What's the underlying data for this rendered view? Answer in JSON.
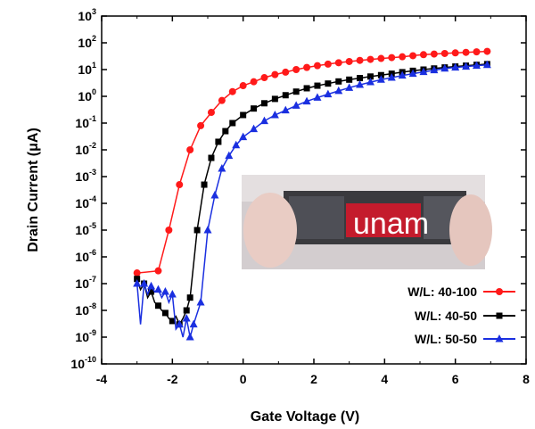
{
  "chart_data": {
    "type": "scatter",
    "title": "",
    "xlabel": "Gate Voltage (V)",
    "ylabel": "Drain Current (μA)",
    "xlim": [
      -4,
      8
    ],
    "ylim_log10": [
      -10,
      3
    ],
    "yscale": "log",
    "x_ticks": [
      "-4",
      "-2",
      "0",
      "2",
      "4",
      "6",
      "8"
    ],
    "y_tick_base": "10",
    "y_tick_exponents": [
      "-10",
      "-9",
      "-8",
      "-7",
      "-6",
      "-5",
      "-4",
      "-3",
      "-2",
      "-1",
      "0",
      "1",
      "2",
      "3"
    ],
    "legend_position": "bottom-right",
    "series": [
      {
        "name": "W/L: 40-100",
        "color": "#ff1a1a",
        "marker": "circle",
        "x": [
          -3.0,
          -2.4,
          -2.1,
          -1.8,
          -1.5,
          -1.2,
          -0.9,
          -0.6,
          -0.3,
          0.0,
          0.3,
          0.6,
          0.9,
          1.2,
          1.5,
          1.8,
          2.1,
          2.4,
          2.7,
          3.0,
          3.3,
          3.6,
          3.9,
          4.2,
          4.5,
          4.8,
          5.1,
          5.4,
          5.7,
          6.0,
          6.3,
          6.6,
          6.9
        ],
        "y": [
          2.5e-07,
          3e-07,
          1e-05,
          0.0005,
          0.01,
          0.08,
          0.25,
          0.7,
          1.5,
          2.5,
          3.5,
          5,
          6.5,
          8,
          10,
          12,
          14,
          16,
          18,
          20,
          22,
          24,
          26,
          28,
          30,
          33,
          36,
          38,
          40,
          42,
          44,
          46,
          48
        ]
      },
      {
        "name": "W/L: 40-50",
        "color": "#000000",
        "marker": "square",
        "x": [
          -3.0,
          -2.9,
          -2.8,
          -2.7,
          -2.6,
          -2.5,
          -2.4,
          -2.3,
          -2.2,
          -2.1,
          -2.0,
          -1.9,
          -1.8,
          -1.7,
          -1.6,
          -1.5,
          -1.3,
          -1.1,
          -0.9,
          -0.7,
          -0.5,
          -0.3,
          0.0,
          0.3,
          0.6,
          0.9,
          1.2,
          1.5,
          1.8,
          2.1,
          2.4,
          2.7,
          3.0,
          3.3,
          3.6,
          3.9,
          4.2,
          4.5,
          4.8,
          5.1,
          5.4,
          5.7,
          6.0,
          6.3,
          6.6,
          6.9
        ],
        "y": [
          1.5e-07,
          6e-08,
          1e-07,
          3e-08,
          5e-08,
          2e-08,
          1.5e-08,
          1e-08,
          8e-09,
          5e-09,
          4e-09,
          6e-09,
          3e-09,
          5e-09,
          1e-08,
          3e-08,
          1e-05,
          0.0005,
          0.005,
          0.02,
          0.05,
          0.1,
          0.2,
          0.35,
          0.55,
          0.8,
          1.1,
          1.5,
          2.0,
          2.5,
          3.0,
          3.6,
          4.2,
          4.8,
          5.5,
          6.2,
          7.0,
          8.0,
          9.0,
          10,
          11,
          12,
          13,
          14,
          15,
          16
        ]
      },
      {
        "name": "W/L: 50-50",
        "color": "#1a2fe0",
        "marker": "triangle",
        "x": [
          -3.0,
          -2.9,
          -2.8,
          -2.7,
          -2.6,
          -2.5,
          -2.4,
          -2.3,
          -2.2,
          -2.1,
          -2.0,
          -1.9,
          -1.8,
          -1.7,
          -1.6,
          -1.5,
          -1.4,
          -1.2,
          -1.0,
          -0.8,
          -0.6,
          -0.4,
          -0.2,
          0.0,
          0.3,
          0.6,
          0.9,
          1.2,
          1.5,
          1.8,
          2.1,
          2.4,
          2.7,
          3.0,
          3.3,
          3.6,
          3.9,
          4.2,
          4.5,
          4.8,
          5.1,
          5.4,
          5.7,
          6.0,
          6.3,
          6.6,
          6.9
        ],
        "y": [
          1e-07,
          3e-09,
          1e-07,
          4e-08,
          8e-08,
          5e-08,
          6e-08,
          3e-08,
          5e-08,
          2e-08,
          4e-08,
          2e-09,
          3e-09,
          1e-09,
          5e-09,
          1e-09,
          3e-09,
          2e-08,
          1e-05,
          0.0002,
          0.002,
          0.006,
          0.015,
          0.03,
          0.06,
          0.12,
          0.2,
          0.3,
          0.45,
          0.65,
          0.9,
          1.2,
          1.6,
          2.1,
          2.7,
          3.4,
          4.2,
          5.0,
          6.0,
          7.0,
          8.2,
          9.5,
          11,
          12,
          13,
          14,
          15
        ]
      }
    ]
  },
  "inset_photo": {
    "text": "unam",
    "colors": {
      "background": "#d3cdcf",
      "dark_band": "#2a2a2e",
      "red_panel": "#c41b2c"
    }
  }
}
